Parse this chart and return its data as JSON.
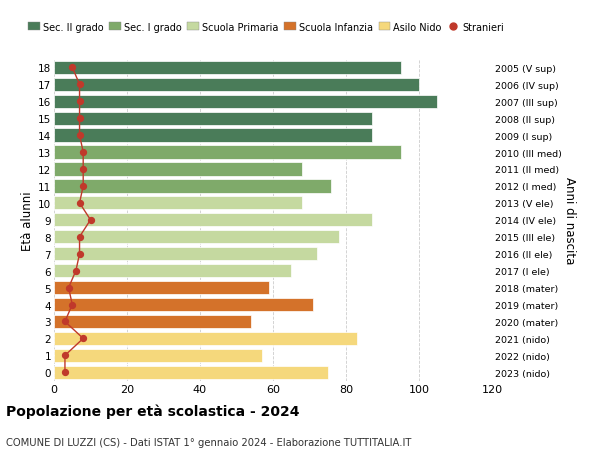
{
  "ages": [
    0,
    1,
    2,
    3,
    4,
    5,
    6,
    7,
    8,
    9,
    10,
    11,
    12,
    13,
    14,
    15,
    16,
    17,
    18
  ],
  "values": [
    75,
    57,
    83,
    54,
    71,
    59,
    65,
    72,
    78,
    87,
    68,
    76,
    68,
    95,
    87,
    87,
    105,
    100,
    95
  ],
  "stranieri": [
    3,
    3,
    8,
    3,
    5,
    4,
    6,
    7,
    7,
    10,
    7,
    8,
    8,
    8,
    7,
    7,
    7,
    7,
    5
  ],
  "right_labels": [
    "2023 (nido)",
    "2022 (nido)",
    "2021 (nido)",
    "2020 (mater)",
    "2019 (mater)",
    "2018 (mater)",
    "2017 (I ele)",
    "2016 (II ele)",
    "2015 (III ele)",
    "2014 (IV ele)",
    "2013 (V ele)",
    "2012 (I med)",
    "2011 (II med)",
    "2010 (III med)",
    "2009 (I sup)",
    "2008 (II sup)",
    "2007 (III sup)",
    "2006 (IV sup)",
    "2005 (V sup)"
  ],
  "bar_colors": [
    "#f5d87c",
    "#f5d87c",
    "#f5d87c",
    "#d4722a",
    "#d4722a",
    "#d4722a",
    "#c5d9a0",
    "#c5d9a0",
    "#c5d9a0",
    "#c5d9a0",
    "#c5d9a0",
    "#7faa6a",
    "#7faa6a",
    "#7faa6a",
    "#4a7c59",
    "#4a7c59",
    "#4a7c59",
    "#4a7c59",
    "#4a7c59"
  ],
  "title": "Popolazione per età scolastica - 2024",
  "subtitle": "COMUNE DI LUZZI (CS) - Dati ISTAT 1° gennaio 2024 - Elaborazione TUTTITALIA.IT",
  "ylabel": "Età alunni",
  "right_ylabel": "Anni di nascita",
  "xlim": [
    0,
    120
  ],
  "xticks": [
    0,
    20,
    40,
    60,
    80,
    100,
    120
  ],
  "legend_labels": [
    "Sec. II grado",
    "Sec. I grado",
    "Scuola Primaria",
    "Scuola Infanzia",
    "Asilo Nido",
    "Stranieri"
  ],
  "legend_colors": [
    "#4a7c59",
    "#7faa6a",
    "#c5d9a0",
    "#d4722a",
    "#f5d87c",
    "#c0392b"
  ],
  "stranieri_color": "#c0392b",
  "background_color": "#ffffff",
  "grid_color": "#cccccc"
}
